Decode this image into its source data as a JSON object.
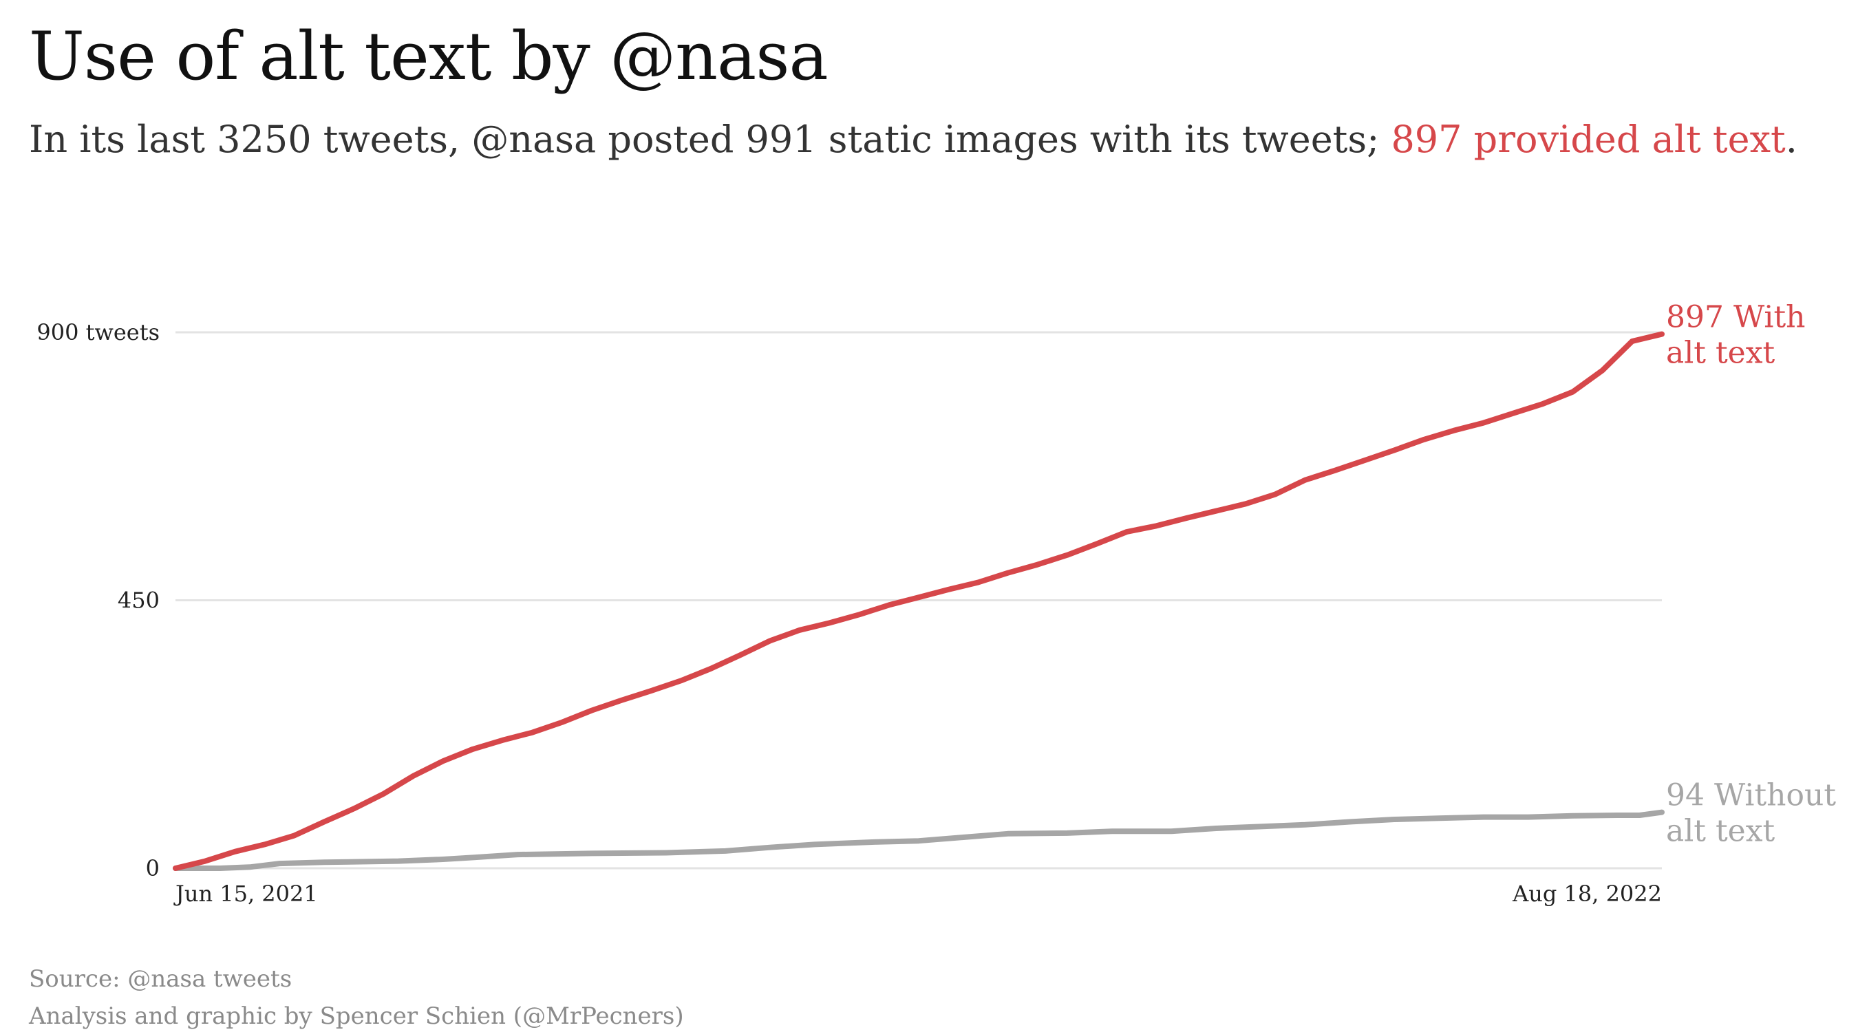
{
  "title": "Use of alt text by @nasa",
  "subtitle": {
    "prefix": "In its last 3250 tweets, @nasa posted 991 static images with its tweets; ",
    "highlight": "897 provided alt text",
    "suffix": "."
  },
  "footer": {
    "source": "Source: @nasa tweets",
    "credit": "Analysis and graphic by Spencer Schien (@MrPecners)"
  },
  "colors": {
    "with_alt": "#d6474a",
    "without_alt": "#a6a6a6",
    "grid": "#e3e3e3",
    "axis_text": "#222222"
  },
  "chart_data": {
    "type": "line",
    "x_start_label": "Jun 15, 2021",
    "x_end_label": "Aug 18, 2022",
    "ylim": [
      0,
      900
    ],
    "y_ticks": [
      {
        "value": 0,
        "label": "0"
      },
      {
        "value": 450,
        "label": "450"
      },
      {
        "value": 900,
        "label": "900 tweets"
      }
    ],
    "grid": true,
    "series": [
      {
        "key": "with_alt",
        "end_label_line1": "897 With",
        "end_label_line2": "alt text",
        "points": [
          [
            0,
            0
          ],
          [
            0.02,
            12
          ],
          [
            0.04,
            28
          ],
          [
            0.06,
            40
          ],
          [
            0.08,
            55
          ],
          [
            0.1,
            78
          ],
          [
            0.12,
            100
          ],
          [
            0.14,
            125
          ],
          [
            0.16,
            155
          ],
          [
            0.18,
            180
          ],
          [
            0.2,
            200
          ],
          [
            0.22,
            215
          ],
          [
            0.24,
            228
          ],
          [
            0.26,
            245
          ],
          [
            0.28,
            265
          ],
          [
            0.3,
            282
          ],
          [
            0.32,
            298
          ],
          [
            0.34,
            315
          ],
          [
            0.36,
            335
          ],
          [
            0.38,
            358
          ],
          [
            0.4,
            382
          ],
          [
            0.42,
            400
          ],
          [
            0.44,
            412
          ],
          [
            0.46,
            426
          ],
          [
            0.48,
            442
          ],
          [
            0.5,
            455
          ],
          [
            0.52,
            468
          ],
          [
            0.54,
            480
          ],
          [
            0.56,
            496
          ],
          [
            0.58,
            510
          ],
          [
            0.6,
            526
          ],
          [
            0.62,
            545
          ],
          [
            0.64,
            565
          ],
          [
            0.66,
            575
          ],
          [
            0.68,
            588
          ],
          [
            0.7,
            600
          ],
          [
            0.72,
            612
          ],
          [
            0.74,
            628
          ],
          [
            0.76,
            652
          ],
          [
            0.78,
            668
          ],
          [
            0.8,
            685
          ],
          [
            0.82,
            702
          ],
          [
            0.84,
            720
          ],
          [
            0.86,
            735
          ],
          [
            0.88,
            748
          ],
          [
            0.9,
            764
          ],
          [
            0.92,
            780
          ],
          [
            0.94,
            800
          ],
          [
            0.96,
            836
          ],
          [
            0.98,
            885
          ],
          [
            1.0,
            897
          ]
        ]
      },
      {
        "key": "without_alt",
        "end_label_line1": "94 Without",
        "end_label_line2": "alt text",
        "points": [
          [
            0,
            0
          ],
          [
            0.03,
            0
          ],
          [
            0.05,
            2
          ],
          [
            0.07,
            8
          ],
          [
            0.1,
            10
          ],
          [
            0.15,
            12
          ],
          [
            0.18,
            15
          ],
          [
            0.2,
            18
          ],
          [
            0.23,
            23
          ],
          [
            0.28,
            25
          ],
          [
            0.33,
            26
          ],
          [
            0.37,
            29
          ],
          [
            0.4,
            35
          ],
          [
            0.43,
            40
          ],
          [
            0.47,
            44
          ],
          [
            0.5,
            46
          ],
          [
            0.53,
            52
          ],
          [
            0.56,
            58
          ],
          [
            0.6,
            59
          ],
          [
            0.63,
            62
          ],
          [
            0.67,
            62
          ],
          [
            0.7,
            67
          ],
          [
            0.73,
            70
          ],
          [
            0.76,
            73
          ],
          [
            0.79,
            78
          ],
          [
            0.82,
            82
          ],
          [
            0.85,
            84
          ],
          [
            0.88,
            86
          ],
          [
            0.91,
            86
          ],
          [
            0.94,
            88
          ],
          [
            0.97,
            89
          ],
          [
            0.985,
            89
          ],
          [
            1.0,
            94
          ]
        ]
      }
    ]
  }
}
